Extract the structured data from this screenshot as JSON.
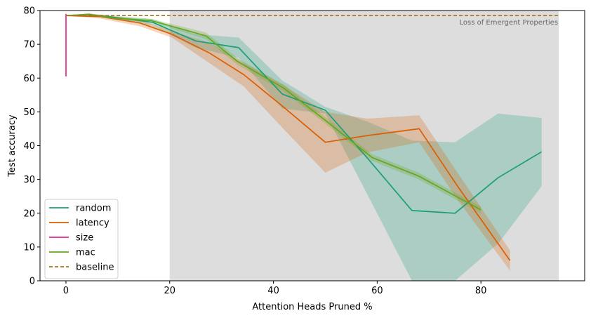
{
  "chart_data": {
    "type": "line",
    "xlabel": "Attention Heads Pruned %",
    "ylabel": "Test accuracy",
    "xlim": [
      -5,
      100
    ],
    "ylim": [
      0,
      80
    ],
    "xticks": [
      0,
      20,
      40,
      60,
      80
    ],
    "yticks": [
      0,
      10,
      20,
      30,
      40,
      50,
      60,
      70,
      80
    ],
    "grid": false,
    "legend_position": "bottom-left",
    "shaded_region": {
      "x_start": 20,
      "x_end": 95,
      "label": "Loss of Emergent Properties",
      "color": "#dddddd"
    },
    "series": [
      {
        "name": "random",
        "color": "#1b9e77",
        "style": "solid",
        "x": [
          0,
          4.2,
          8.3,
          16.7,
          25,
          33.3,
          41.7,
          50,
          58.3,
          66.7,
          75,
          83.3,
          91.7
        ],
        "y": [
          78.5,
          78.8,
          78.2,
          76.5,
          71,
          69,
          55.3,
          50.5,
          36,
          20.8,
          20,
          30.5,
          38.2
        ],
        "lower": [
          78.5,
          78.5,
          77.8,
          75.5,
          69,
          66,
          51,
          49.5,
          25,
          0,
          0,
          11,
          28
        ],
        "upper": [
          78.5,
          79.1,
          78.6,
          77.5,
          73,
          72,
          59.3,
          51.5,
          47,
          41.5,
          41,
          49.5,
          48.2
        ]
      },
      {
        "name": "latency",
        "color": "#d95f02",
        "style": "solid",
        "x": [
          0,
          6.7,
          14.3,
          20.4,
          27.6,
          34.3,
          41.9,
          50,
          58.1,
          68.1,
          75.5,
          85.6
        ],
        "y": [
          78.5,
          78.2,
          76.3,
          73,
          67.5,
          61,
          51.5,
          41,
          43,
          45,
          28,
          6
        ],
        "lower": [
          78.5,
          77.6,
          75.3,
          72,
          64.5,
          57.5,
          45,
          32,
          38,
          41,
          24,
          3
        ],
        "upper": [
          78.5,
          78.8,
          77.3,
          74,
          70.5,
          64.5,
          58,
          50,
          48,
          49,
          32,
          9
        ]
      },
      {
        "name": "size",
        "color": "#e7298a",
        "style": "solid",
        "x": [
          0,
          0
        ],
        "y": [
          60.5,
          79
        ]
      },
      {
        "name": "mac",
        "color": "#66a61e",
        "style": "solid",
        "x": [
          0,
          4.5,
          9,
          16.5,
          27,
          33,
          42,
          50,
          59,
          68,
          80
        ],
        "y": [
          78.5,
          78.9,
          77.8,
          77,
          72.5,
          65,
          57,
          47.5,
          36.5,
          31,
          21
        ],
        "lower": [
          78.5,
          78.6,
          77.4,
          76.5,
          71.5,
          64,
          56,
          46.5,
          35.5,
          30,
          20
        ],
        "upper": [
          78.5,
          79.2,
          78.2,
          77.5,
          73.5,
          66,
          58,
          48.5,
          37.5,
          32,
          22
        ]
      },
      {
        "name": "baseline",
        "color": "#a6761d",
        "style": "dashed",
        "x": [
          0,
          95
        ],
        "y": [
          78.5,
          78.5
        ]
      }
    ]
  }
}
